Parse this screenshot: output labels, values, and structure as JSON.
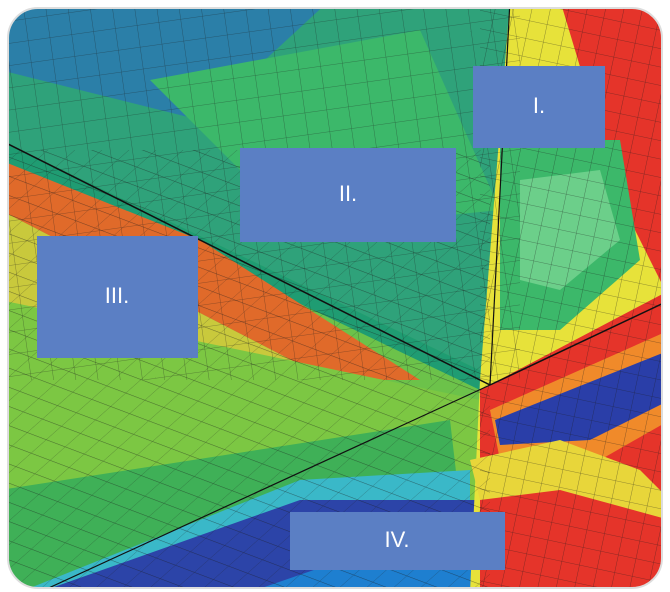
{
  "boxes": [
    {
      "label": "I."
    },
    {
      "label": "II."
    },
    {
      "label": "III."
    },
    {
      "label": "IV."
    }
  ]
}
